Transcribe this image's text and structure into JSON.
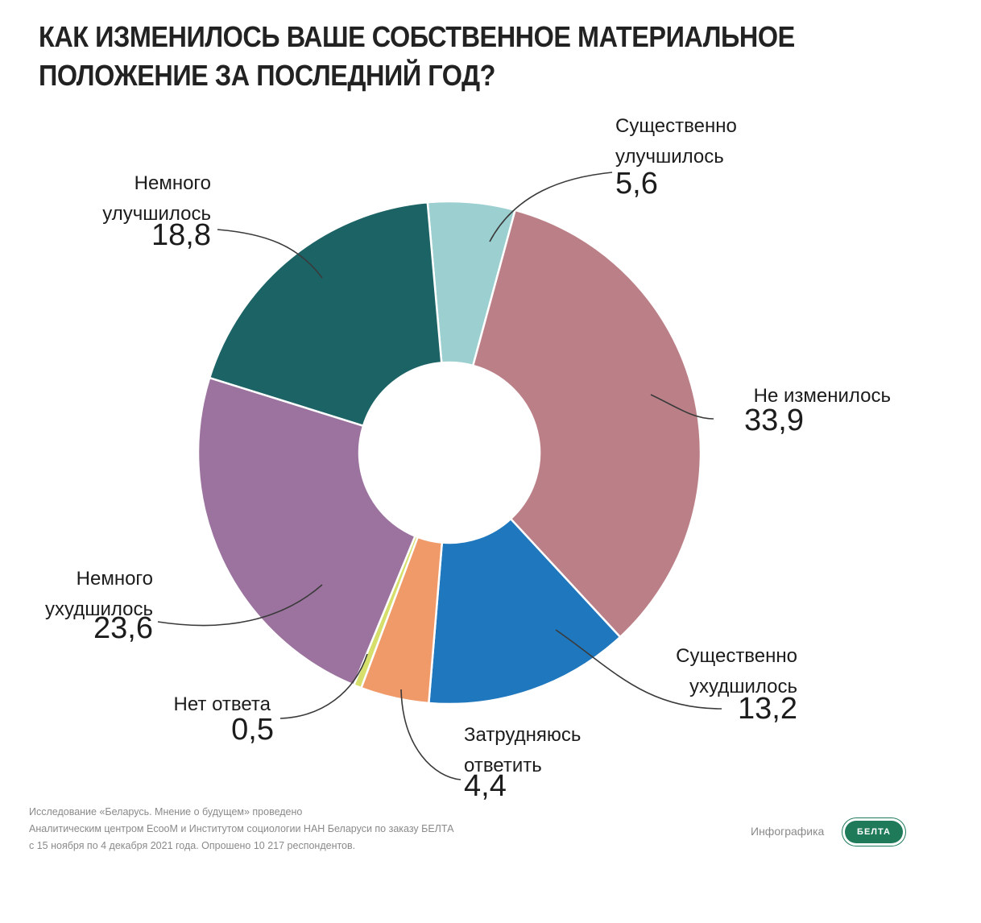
{
  "title": {
    "line1": "КАК ИЗМЕНИЛОСЬ ВАШЕ СОБСТВЕННОЕ МАТЕРИАЛЬНОЕ",
    "line2": "ПОЛОЖЕНИЕ ЗА ПОСЛЕДНИЙ ГОД?"
  },
  "chart_data": {
    "type": "pie",
    "variant": "donut",
    "slices": [
      {
        "label_lines": [
          "Существенно",
          "улучшилось"
        ],
        "value": 5.6,
        "value_text": "5,6",
        "color": "#9ccfd0"
      },
      {
        "label_lines": [
          "Не изменилось"
        ],
        "value": 33.9,
        "value_text": "33,9",
        "color": "#bb8087"
      },
      {
        "label_lines": [
          "Существенно",
          "ухудшилось"
        ],
        "value": 13.2,
        "value_text": "13,2",
        "color": "#1f77bd"
      },
      {
        "label_lines": [
          "Затрудняюсь",
          "ответить"
        ],
        "value": 4.4,
        "value_text": "4,4",
        "color": "#f09a6a"
      },
      {
        "label_lines": [
          "Нет ответа"
        ],
        "value": 0.5,
        "value_text": "0,5",
        "color": "#d6df6c"
      },
      {
        "label_lines": [
          "Немного",
          "ухудшилось"
        ],
        "value": 23.6,
        "value_text": "23,6",
        "color": "#9b739e"
      },
      {
        "label_lines": [
          "Немного",
          "улучшилось"
        ],
        "value": 18.8,
        "value_text": "18,8",
        "color": "#1c6366"
      }
    ],
    "total": 100,
    "start_angle_deg": -5
  },
  "footnote": {
    "line1": "Исследование «Беларусь. Мнение о будущем» проведено",
    "line2": "Аналитическим центром EcooM и Институтом социологии НАН Беларуси по заказу БЕЛТА",
    "line3": "с 15 ноября по 4 декабря 2021 года. Опрошено 10 217 респондентов."
  },
  "credit": {
    "label": "Инфографика",
    "logo_text": "БЕЛТА"
  }
}
